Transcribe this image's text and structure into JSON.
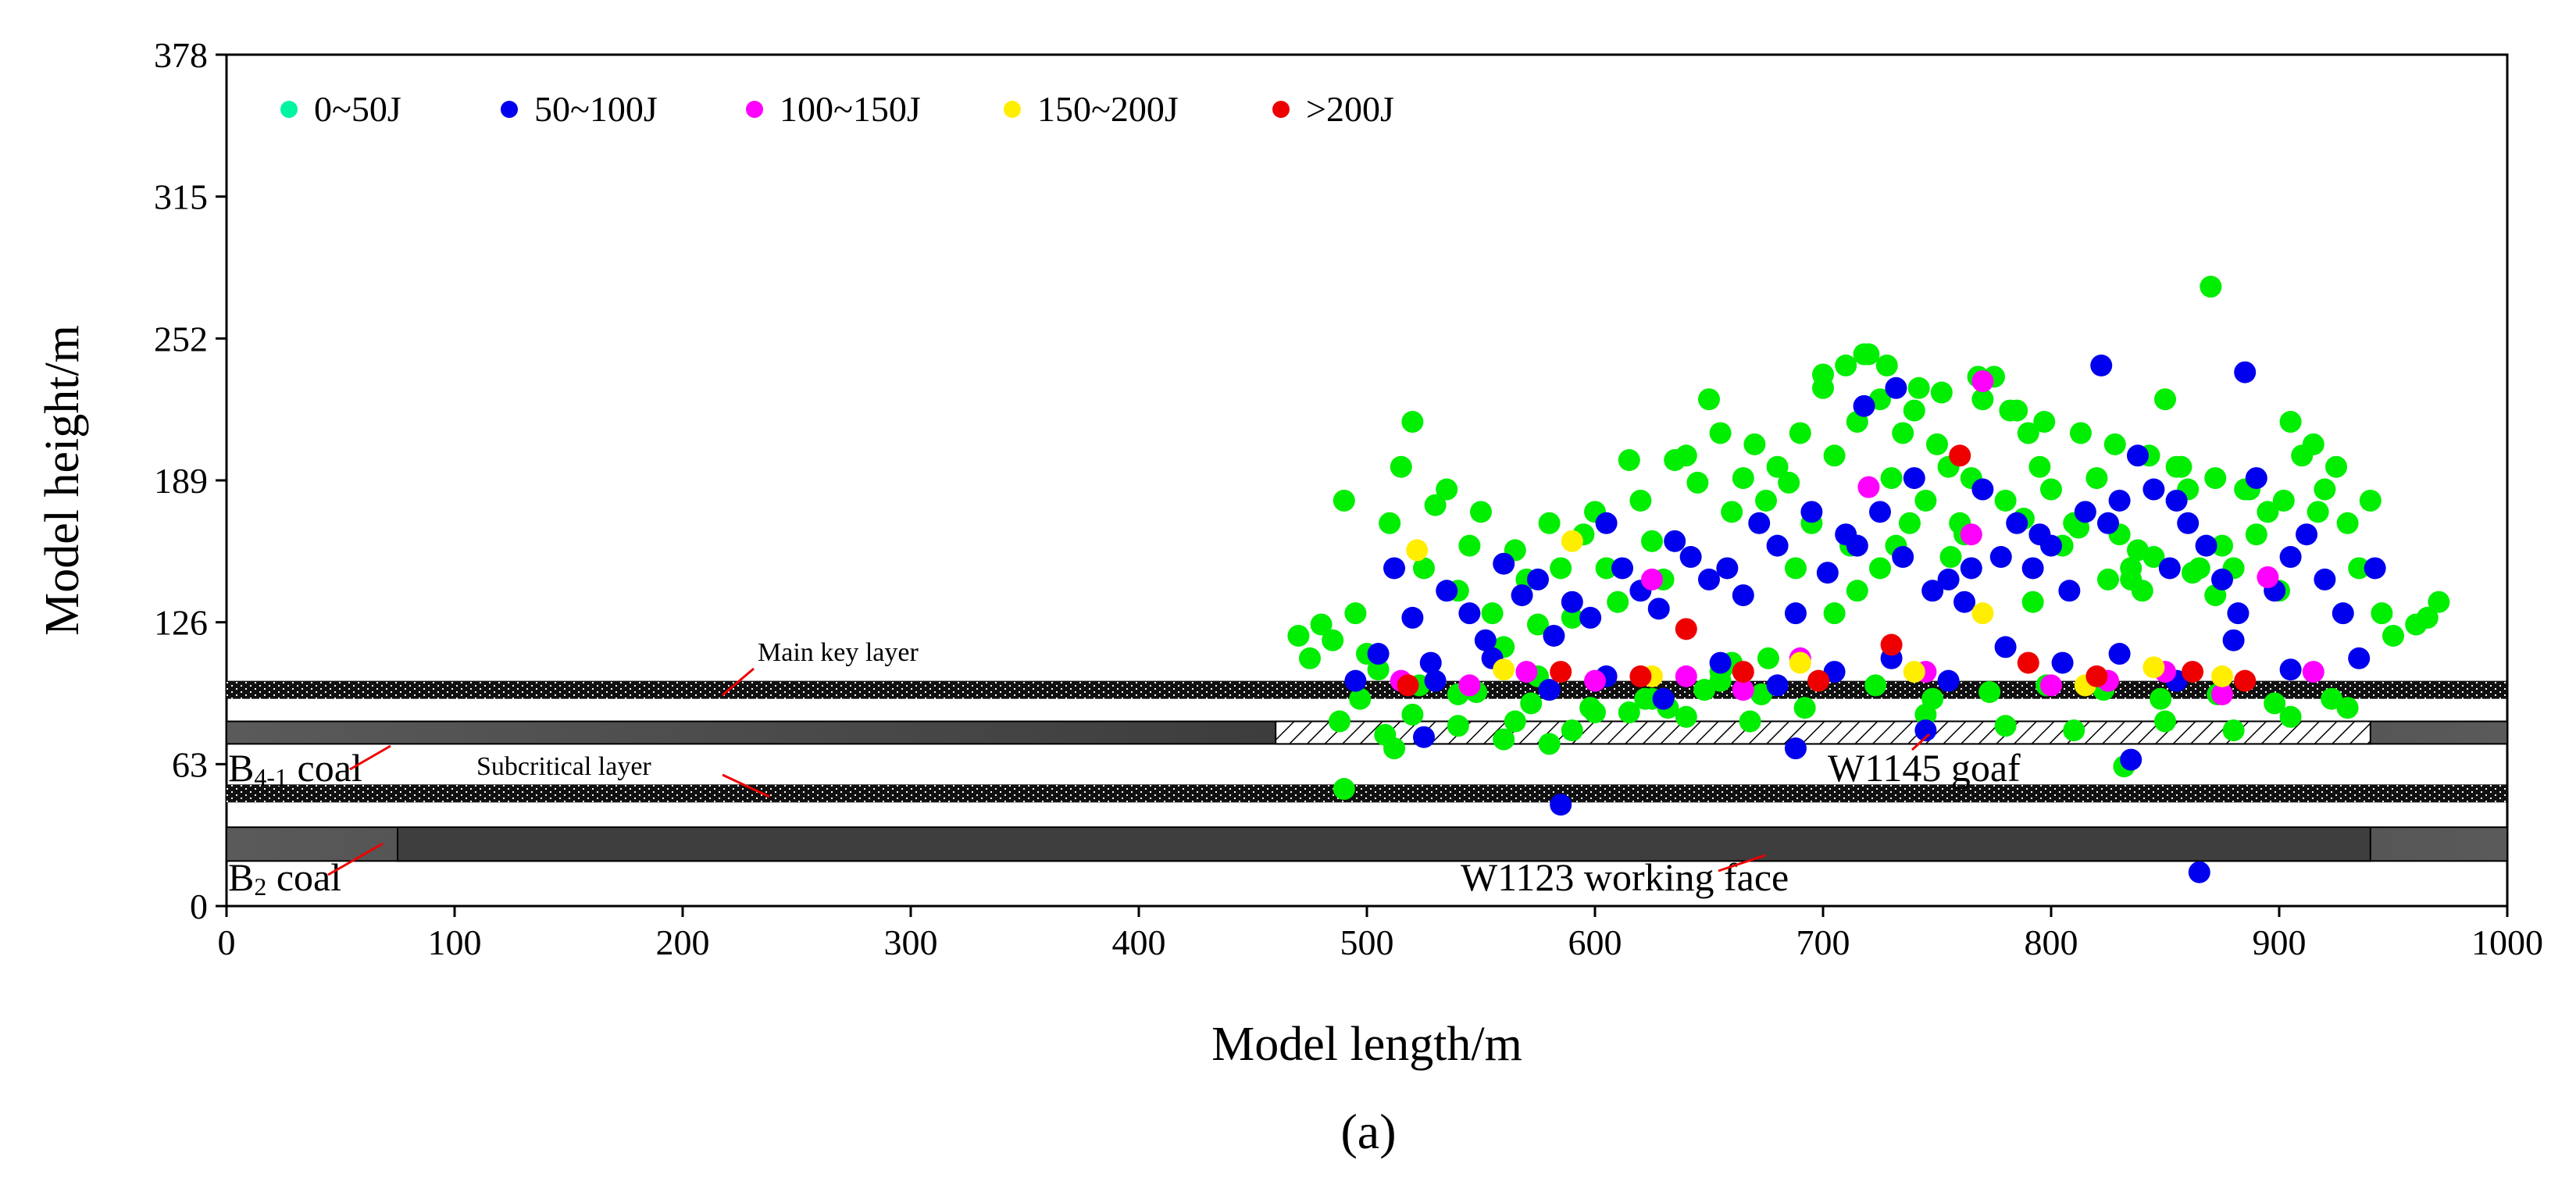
{
  "chart_data": {
    "type": "scatter",
    "title": "",
    "panel_label": "(a)",
    "xlabel": "Model length/m",
    "ylabel": "Model height/m",
    "xlim": [
      0,
      1000
    ],
    "ylim": [
      0,
      378
    ],
    "x_ticks": [
      "0",
      "100",
      "200",
      "300",
      "400",
      "500",
      "600",
      "700",
      "800",
      "900",
      "1000"
    ],
    "y_ticks": [
      "0",
      "63",
      "126",
      "189",
      "252",
      "315",
      "378"
    ],
    "legend": [
      {
        "label": "0~50J",
        "color": "#00f5a0"
      },
      {
        "label": "50~100J",
        "color": "#0000ee"
      },
      {
        "label": "100~150J",
        "color": "#ff00ff"
      },
      {
        "label": "150~200J",
        "color": "#ffee00"
      },
      {
        "label": ">200J",
        "color": "#ee0000"
      }
    ],
    "plot_colors": {
      "green": "#00ee00",
      "blue": "#0000ee",
      "magenta": "#ff00ff",
      "yellow": "#ffee00",
      "red": "#ee0000"
    },
    "strata": {
      "main_key_layer": {
        "label": "Main key layer",
        "y_range": [
          92,
          100
        ]
      },
      "b41_coal": {
        "label_main": "B",
        "label_sub": "4-1",
        "label_end": " coal",
        "y_range": [
          72,
          82
        ]
      },
      "w1145_goaf": {
        "label": "W1145 goaf",
        "x_range": [
          460,
          940
        ],
        "y_range": [
          72,
          82
        ]
      },
      "subcritical_layer": {
        "label": "Subcritical layer",
        "y_range": [
          46,
          54
        ]
      },
      "b2_coal": {
        "label_main": "B",
        "label_sub": "2",
        "label_end": " coal",
        "y_range": [
          20,
          35
        ]
      },
      "w1123_working_face": {
        "label": "W1123 working face",
        "x_range": [
          75,
          940
        ],
        "y_range": [
          20,
          35
        ]
      }
    },
    "series": [
      {
        "name": "green",
        "color_key": "green",
        "x": [
          470,
          475,
          480,
          485,
          490,
          495,
          500,
          505,
          510,
          515,
          520,
          525,
          530,
          535,
          540,
          545,
          550,
          555,
          560,
          565,
          570,
          575,
          580,
          585,
          590,
          595,
          600,
          605,
          610,
          615,
          620,
          625,
          630,
          635,
          640,
          645,
          650,
          655,
          660,
          665,
          670,
          675,
          680,
          685,
          690,
          695,
          700,
          705,
          710,
          715,
          720,
          725,
          730,
          735,
          740,
          745,
          750,
          755,
          760,
          765,
          770,
          775,
          780,
          785,
          790,
          795,
          800,
          805,
          810,
          815,
          820,
          825,
          830,
          835,
          840,
          845,
          850,
          855,
          860,
          865,
          870,
          875,
          880,
          885,
          890,
          895,
          900,
          905,
          910,
          915,
          920,
          925,
          930,
          935,
          940,
          945,
          950,
          960,
          965,
          970,
          497,
          523,
          548,
          572,
          598,
          622,
          648,
          673,
          698,
          723,
          748,
          773,
          798,
          823,
          848,
          873,
          898,
          923,
          688,
          712,
          738,
          762,
          788,
          812,
          838,
          862,
          700,
          718,
          728,
          742,
          752,
          768,
          782,
          797,
          813,
          828,
          843,
          857,
          872,
          887,
          902,
          917,
          705,
          715,
          725,
          732,
          756,
          792,
          835,
          872,
          520,
          540,
          565,
          590,
          615,
          640,
          668,
          692,
          745,
          780,
          850,
          880,
          905,
          930,
          490,
          512,
          560,
          580,
          632,
          655,
          488,
          508,
          540,
          575,
          600,
          625,
          655,
          660,
          676,
          810,
          832
        ],
        "y": [
          120,
          110,
          125,
          118,
          180,
          130,
          112,
          105,
          170,
          195,
          215,
          150,
          178,
          185,
          140,
          160,
          175,
          130,
          115,
          158,
          145,
          125,
          170,
          150,
          128,
          165,
          175,
          150,
          135,
          198,
          180,
          162,
          145,
          198,
          200,
          188,
          225,
          210,
          175,
          190,
          205,
          180,
          195,
          188,
          210,
          170,
          230,
          200,
          240,
          215,
          245,
          225,
          190,
          210,
          220,
          180,
          205,
          195,
          170,
          190,
          225,
          235,
          180,
          220,
          210,
          195,
          185,
          160,
          170,
          175,
          190,
          145,
          165,
          150,
          140,
          155,
          225,
          195,
          185,
          150,
          275,
          160,
          150,
          185,
          165,
          175,
          140,
          215,
          200,
          205,
          185,
          195,
          170,
          150,
          180,
          130,
          120,
          125,
          128,
          135,
          92,
          98,
          95,
          90,
          88,
          92,
          96,
          94,
          100,
          98,
          92,
          95,
          98,
          96,
          92,
          94,
          90,
          92,
          150,
          160,
          170,
          165,
          172,
          168,
          158,
          148,
          236,
          245,
          240,
          230,
          228,
          235,
          220,
          215,
          210,
          205,
          200,
          195,
          190,
          185,
          180,
          175,
          130,
          140,
          150,
          160,
          155,
          135,
          145,
          138,
          85,
          80,
          82,
          78,
          86,
          84,
          82,
          88,
          85,
          80,
          82,
          78,
          84,
          88,
          52,
          70,
          74,
          72,
          88,
          100,
          82,
          76,
          94,
          102,
          86,
          92,
          104,
          108,
          110,
          78,
          62
        ]
      },
      {
        "name": "blue",
        "color_key": "blue",
        "x": [
          495,
          505,
          512,
          520,
          528,
          535,
          545,
          552,
          560,
          568,
          575,
          582,
          590,
          598,
          605,
          612,
          620,
          628,
          635,
          642,
          650,
          658,
          665,
          672,
          680,
          688,
          695,
          702,
          710,
          718,
          725,
          732,
          740,
          748,
          755,
          762,
          770,
          778,
          785,
          792,
          800,
          808,
          815,
          822,
          830,
          838,
          845,
          852,
          860,
          868,
          875,
          882,
          890,
          898,
          905,
          912,
          920,
          928,
          935,
          942,
          530,
          555,
          580,
          605,
          630,
          655,
          680,
          705,
          730,
          755,
          780,
          805,
          830,
          855,
          880,
          905,
          715,
          735,
          765,
          795,
          825,
          855,
          885,
          525,
          585,
          688,
          745,
          835,
          865
        ],
        "y": [
          100,
          112,
          150,
          128,
          108,
          140,
          130,
          118,
          152,
          138,
          145,
          120,
          135,
          128,
          170,
          150,
          140,
          132,
          162,
          155,
          145,
          150,
          138,
          170,
          160,
          130,
          175,
          148,
          165,
          222,
          175,
          230,
          190,
          140,
          145,
          135,
          185,
          155,
          170,
          150,
          160,
          140,
          175,
          240,
          180,
          200,
          185,
          150,
          170,
          160,
          145,
          130,
          190,
          140,
          155,
          165,
          145,
          130,
          110,
          150,
          100,
          110,
          96,
          102,
          92,
          108,
          98,
          104,
          110,
          100,
          115,
          108,
          112,
          100,
          118,
          105,
          160,
          155,
          150,
          165,
          170,
          180,
          237,
          75,
          45,
          70,
          78,
          65,
          15
        ],
        "size": [
          18,
          18,
          18,
          18,
          18,
          18,
          18,
          18,
          18,
          18,
          18,
          18,
          18,
          18,
          18,
          18,
          18,
          18,
          18,
          18,
          18,
          18,
          18,
          18,
          18,
          18,
          18,
          18,
          18,
          18,
          18,
          18,
          18,
          18,
          18,
          18,
          18,
          18,
          18,
          18,
          18,
          18,
          18,
          18,
          18,
          18,
          18,
          18,
          18,
          18,
          18,
          18,
          18,
          18,
          18,
          18,
          18,
          18,
          18,
          18,
          18,
          18,
          18,
          18,
          18,
          18,
          18,
          18,
          18,
          18,
          18,
          18,
          18,
          18,
          18,
          18,
          18,
          18,
          18,
          18,
          18,
          18,
          18,
          18,
          18,
          18,
          18,
          18,
          18
        ]
      },
      {
        "name": "magenta",
        "color_key": "magenta",
        "x": [
          515,
          545,
          570,
          600,
          625,
          640,
          665,
          690,
          720,
          745,
          765,
          770,
          800,
          825,
          850,
          875,
          895,
          915
        ],
        "y": [
          100,
          98,
          104,
          100,
          145,
          102,
          96,
          110,
          186,
          104,
          165,
          233,
          98,
          100,
          104,
          94,
          146,
          104
        ]
      },
      {
        "name": "yellow",
        "color_key": "yellow",
        "x": [
          522,
          560,
          590,
          625,
          690,
          740,
          770,
          815,
          845,
          875
        ],
        "y": [
          158,
          105,
          162,
          102,
          108,
          104,
          130,
          98,
          106,
          102
        ]
      },
      {
        "name": "red",
        "color_key": "red",
        "x": [
          518,
          585,
          620,
          640,
          665,
          698,
          730,
          760,
          790,
          820,
          862,
          885
        ],
        "y": [
          98,
          104,
          102,
          123,
          104,
          100,
          116,
          200,
          108,
          102,
          104,
          100
        ]
      }
    ]
  }
}
